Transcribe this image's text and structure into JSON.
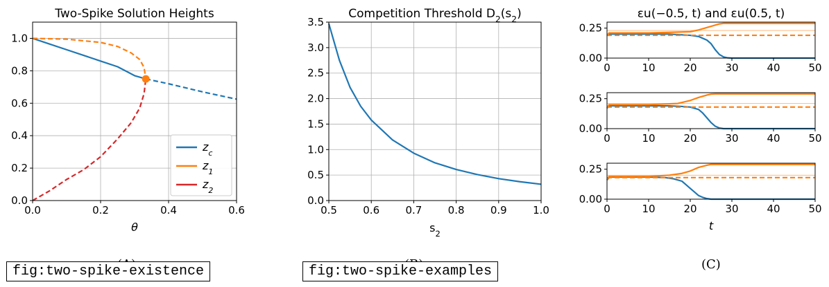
{
  "captions": {
    "a": "(A)",
    "b": "(B)",
    "c": "(C)"
  },
  "labels": {
    "a": "fig:two-spike-existence",
    "b": "fig:two-spike-examples"
  },
  "chart_data": [
    {
      "id": "A",
      "type": "line",
      "title": "Two-Spike Solution Heights",
      "xlabel": "θ",
      "ylabel": "",
      "xlim": [
        0,
        0.6
      ],
      "ylim": [
        0,
        1.1
      ],
      "xticks": [
        "0.0",
        "0.2",
        "0.4",
        "0.6"
      ],
      "yticks": [
        "0.0",
        "0.2",
        "0.4",
        "0.6",
        "0.8",
        "1.0"
      ],
      "grid": true,
      "legend": {
        "placement": "lower-right",
        "entries": [
          "z_c",
          "z_1",
          "z_2"
        ]
      },
      "series": [
        {
          "name": "z_c",
          "color": "#1f77b4",
          "style": "solid",
          "x": [
            0,
            0.05,
            0.1,
            0.15,
            0.2,
            0.25,
            0.3,
            0.333
          ],
          "y": [
            1.0,
            0.965,
            0.93,
            0.895,
            0.86,
            0.825,
            0.77,
            0.75
          ]
        },
        {
          "name": "z_c",
          "color": "#1f77b4",
          "style": "dashed",
          "x": [
            0.333,
            0.4,
            0.5,
            0.6
          ],
          "y": [
            0.75,
            0.72,
            0.67,
            0.625
          ]
        },
        {
          "name": "z_1",
          "color": "#ff7f0e",
          "style": "dashed",
          "x": [
            0,
            0.1,
            0.2,
            0.25,
            0.29,
            0.315,
            0.328,
            0.333
          ],
          "y": [
            1.0,
            0.995,
            0.975,
            0.95,
            0.91,
            0.87,
            0.82,
            0.75
          ]
        },
        {
          "name": "z_2",
          "color": "#d62728",
          "style": "dashed",
          "x": [
            0,
            0.05,
            0.1,
            0.15,
            0.2,
            0.25,
            0.29,
            0.315,
            0.328,
            0.333
          ],
          "y": [
            0,
            0.06,
            0.13,
            0.19,
            0.27,
            0.38,
            0.48,
            0.57,
            0.66,
            0.75
          ]
        }
      ],
      "marker": {
        "x": 0.333,
        "y": 0.75,
        "color": "#ff7f0e"
      }
    },
    {
      "id": "B",
      "type": "line",
      "title": "Competition Threshold D_2(s_2)",
      "xlabel": "s_2",
      "ylabel": "",
      "xlim": [
        0.5,
        1.0
      ],
      "ylim": [
        0,
        3.5
      ],
      "xticks": [
        "0.5",
        "0.6",
        "0.7",
        "0.8",
        "0.9",
        "1.0"
      ],
      "yticks": [
        "0.0",
        "0.5",
        "1.0",
        "1.5",
        "2.0",
        "2.5",
        "3.0",
        "3.5"
      ],
      "grid": true,
      "series": [
        {
          "name": "D_2",
          "color": "#1f77b4",
          "style": "solid",
          "x": [
            0.5,
            0.525,
            0.55,
            0.575,
            0.6,
            0.65,
            0.7,
            0.75,
            0.8,
            0.85,
            0.9,
            0.95,
            1.0
          ],
          "y": [
            3.47,
            2.75,
            2.22,
            1.85,
            1.58,
            1.19,
            0.93,
            0.74,
            0.61,
            0.51,
            0.43,
            0.37,
            0.32
          ]
        }
      ]
    },
    {
      "id": "C1",
      "type": "line",
      "title": "εu(−0.5, t) and εu(0.5, t)",
      "xlabel": "",
      "xlim": [
        0,
        50
      ],
      "ylim": [
        0,
        0.3
      ],
      "xticks": [
        "0",
        "10",
        "20",
        "30",
        "40",
        "50"
      ],
      "yticks": [
        "0.00",
        "0.25"
      ],
      "grid": false,
      "series": [
        {
          "color": "#1f77b4",
          "style": "solid",
          "x": [
            0,
            0.5,
            1,
            5,
            10,
            15,
            20,
            22,
            24,
            25,
            26,
            27,
            28,
            29,
            30,
            50
          ],
          "y": [
            0.19,
            0.2,
            0.2,
            0.2,
            0.2,
            0.2,
            0.19,
            0.18,
            0.15,
            0.12,
            0.07,
            0.03,
            0.01,
            0.002,
            0,
            0
          ]
        },
        {
          "color": "#ff7f0e",
          "style": "solid",
          "x": [
            0,
            0.5,
            1,
            10,
            20,
            22,
            24,
            26,
            27,
            28,
            50
          ],
          "y": [
            0.19,
            0.21,
            0.21,
            0.21,
            0.22,
            0.235,
            0.255,
            0.275,
            0.285,
            0.29,
            0.29
          ]
        },
        {
          "color": "#ff7f0e",
          "style": "dashed",
          "x": [
            0,
            50
          ],
          "y": [
            0.19,
            0.19
          ]
        },
        {
          "color": "#ff7f0e",
          "style": "thin",
          "x": [
            0,
            50
          ],
          "y": [
            0.23,
            0.23
          ]
        }
      ]
    },
    {
      "id": "C2",
      "type": "line",
      "xlim": [
        0,
        50
      ],
      "ylim": [
        0,
        0.3
      ],
      "xticks": [
        "0",
        "10",
        "20",
        "30",
        "40",
        "50"
      ],
      "yticks": [
        "0.00",
        "0.25"
      ],
      "grid": false,
      "series": [
        {
          "color": "#1f77b4",
          "style": "solid",
          "x": [
            0,
            0.5,
            1,
            5,
            10,
            15,
            18,
            20,
            22,
            23,
            24,
            25,
            26,
            27,
            28,
            50
          ],
          "y": [
            0.17,
            0.19,
            0.19,
            0.19,
            0.19,
            0.19,
            0.185,
            0.18,
            0.16,
            0.13,
            0.09,
            0.05,
            0.02,
            0.005,
            0,
            0
          ]
        },
        {
          "color": "#ff7f0e",
          "style": "solid",
          "x": [
            0,
            0.5,
            1,
            10,
            17,
            20,
            22,
            24,
            25,
            26,
            50
          ],
          "y": [
            0.17,
            0.2,
            0.2,
            0.2,
            0.21,
            0.235,
            0.26,
            0.28,
            0.288,
            0.29,
            0.29
          ]
        },
        {
          "color": "#ff7f0e",
          "style": "dashed",
          "x": [
            0,
            50
          ],
          "y": [
            0.18,
            0.18
          ]
        },
        {
          "color": "#ff7f0e",
          "style": "thin",
          "x": [
            0,
            50
          ],
          "y": [
            0.21,
            0.21
          ]
        }
      ]
    },
    {
      "id": "C3",
      "type": "line",
      "xlabel": "t",
      "xlim": [
        0,
        50
      ],
      "ylim": [
        0,
        0.3
      ],
      "xticks": [
        "0",
        "10",
        "20",
        "30",
        "40",
        "50"
      ],
      "yticks": [
        "0.00",
        "0.25"
      ],
      "grid": false,
      "series": [
        {
          "color": "#1f77b4",
          "style": "solid",
          "x": [
            0,
            0.5,
            1,
            5,
            10,
            14,
            16,
            18,
            19,
            20,
            21,
            22,
            23,
            24,
            25,
            50
          ],
          "y": [
            0.16,
            0.18,
            0.185,
            0.185,
            0.185,
            0.18,
            0.17,
            0.15,
            0.12,
            0.09,
            0.06,
            0.03,
            0.015,
            0.005,
            0,
            0
          ]
        },
        {
          "color": "#ff7f0e",
          "style": "solid",
          "x": [
            0,
            0.5,
            1,
            10,
            15,
            18,
            20,
            22,
            24,
            25,
            26,
            50
          ],
          "y": [
            0.16,
            0.19,
            0.19,
            0.19,
            0.2,
            0.215,
            0.235,
            0.265,
            0.283,
            0.29,
            0.29,
            0.29
          ]
        },
        {
          "color": "#ff7f0e",
          "style": "dashed",
          "x": [
            0,
            50
          ],
          "y": [
            0.18,
            0.18
          ]
        },
        {
          "color": "#ff7f0e",
          "style": "thin",
          "x": [
            0,
            50
          ],
          "y": [
            0.2,
            0.2
          ]
        }
      ]
    }
  ]
}
